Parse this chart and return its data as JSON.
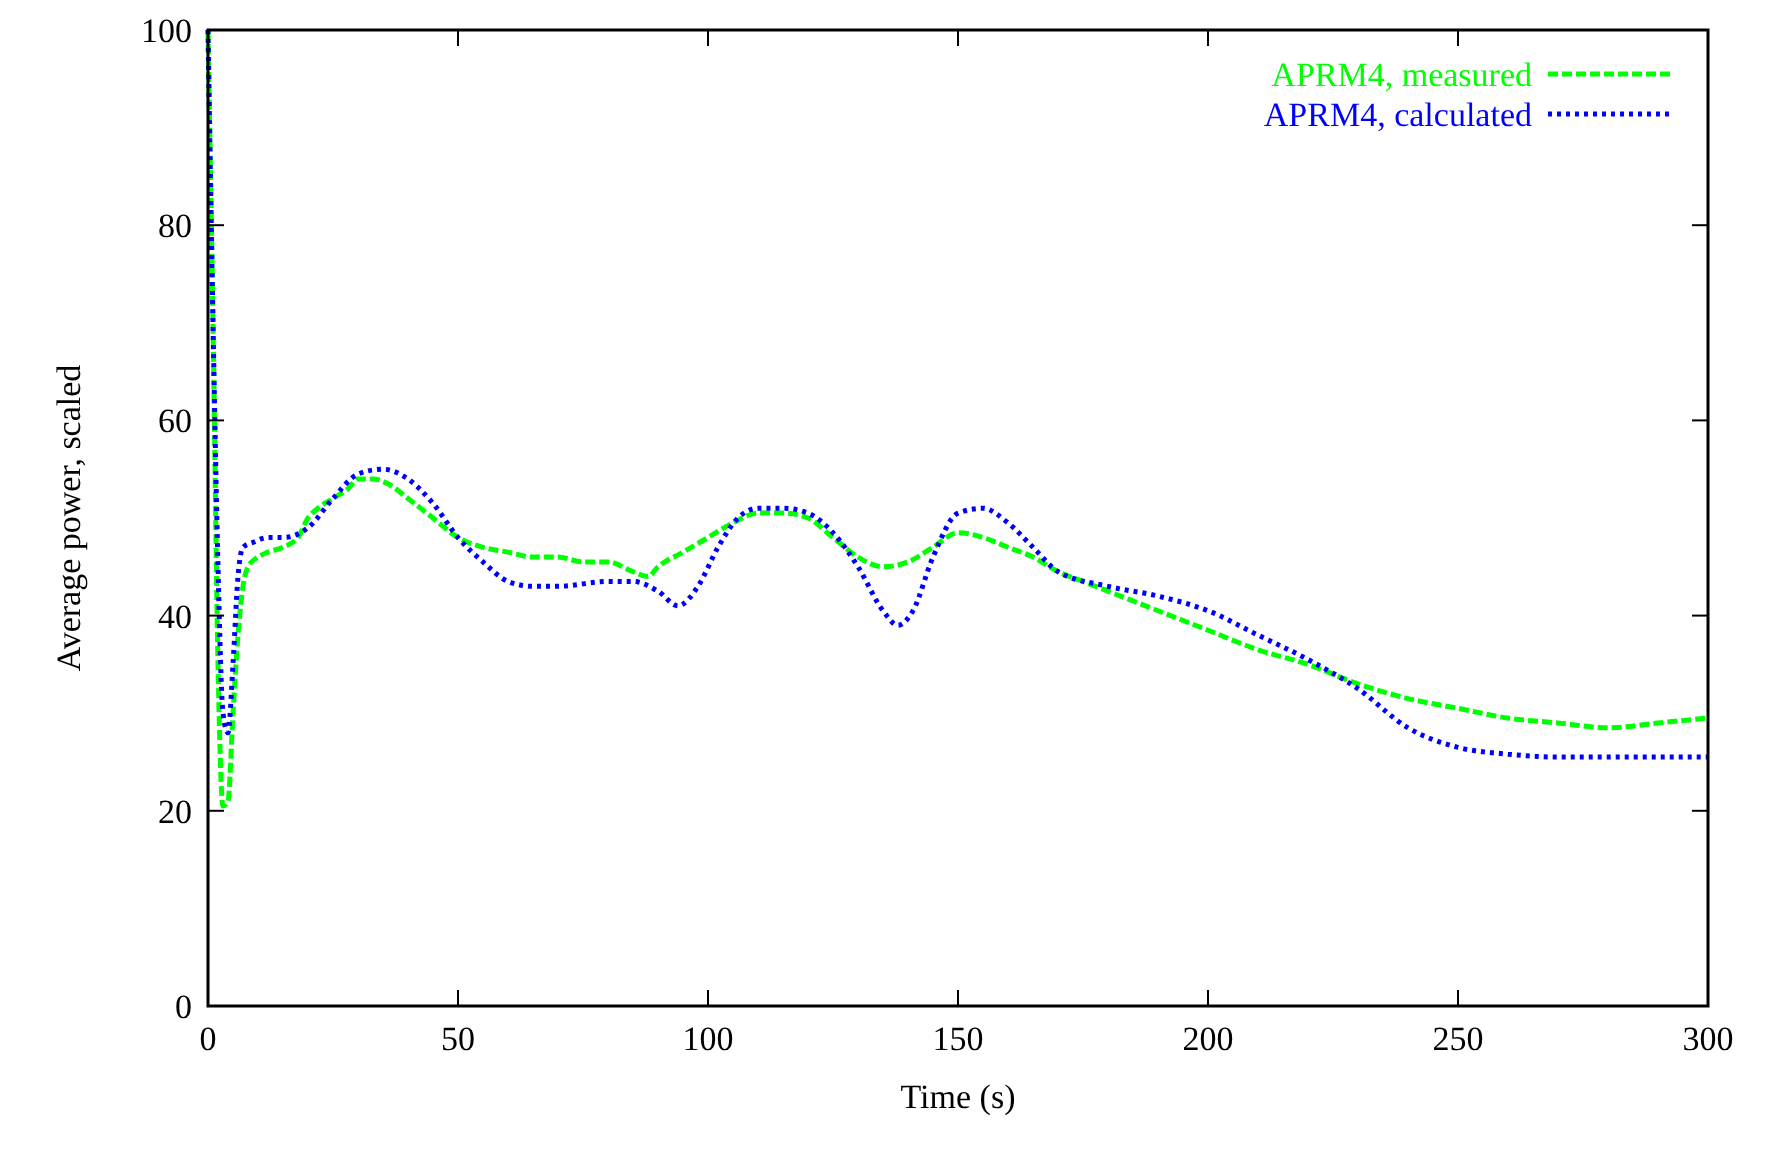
{
  "chart_data": {
    "type": "line",
    "xlabel": "Time (s)",
    "ylabel": "Average power, scaled",
    "xlim": [
      0,
      300
    ],
    "ylim": [
      0,
      100
    ],
    "xticks": [
      0,
      50,
      100,
      150,
      200,
      250,
      300
    ],
    "yticks": [
      0,
      20,
      40,
      60,
      80,
      100
    ],
    "grid": false,
    "legend": "top right",
    "series": [
      {
        "name": "APRM4, measured",
        "color": "#00ff00",
        "line_style": "dashed",
        "x": [
          0,
          1,
          2,
          3,
          4,
          5,
          6,
          7,
          8,
          10,
          12,
          15,
          18,
          20,
          22,
          25,
          28,
          30,
          33,
          36,
          40,
          45,
          50,
          55,
          60,
          65,
          70,
          75,
          80,
          85,
          88,
          90,
          95,
          100,
          105,
          110,
          115,
          120,
          125,
          130,
          135,
          140,
          145,
          150,
          155,
          160,
          165,
          170,
          175,
          180,
          190,
          200,
          210,
          220,
          230,
          240,
          250,
          260,
          270,
          280,
          290,
          300
        ],
        "values": [
          100,
          70,
          35,
          20.5,
          21,
          30,
          38,
          43,
          45,
          46,
          46.5,
          47,
          48,
          50,
          51,
          52,
          53,
          54,
          54,
          53.5,
          52,
          50,
          48,
          47,
          46.5,
          46,
          46,
          45.5,
          45.5,
          44.5,
          44,
          45,
          46.5,
          48,
          49.5,
          50.5,
          50.5,
          50,
          48,
          46,
          45,
          45.5,
          47,
          48.5,
          48,
          47,
          46,
          44.5,
          43.5,
          42.5,
          40.5,
          38.5,
          36.5,
          35,
          33,
          31.5,
          30.5,
          29.5,
          29,
          28.5,
          29,
          29.5
        ]
      },
      {
        "name": "APRM4, calculated",
        "color": "#0000ff",
        "line_style": "dotted",
        "x": [
          0,
          1,
          2,
          3,
          4,
          5,
          6,
          7,
          9,
          12,
          15,
          20,
          25,
          30,
          35,
          40,
          45,
          50,
          55,
          60,
          65,
          70,
          80,
          85,
          90,
          94,
          98,
          102,
          106,
          110,
          115,
          120,
          125,
          130,
          135,
          138,
          141,
          145,
          150,
          155,
          160,
          165,
          170,
          180,
          190,
          200,
          210,
          220,
          230,
          240,
          250,
          260,
          270,
          280,
          300
        ],
        "values": [
          100,
          70,
          45,
          30,
          28,
          35,
          44,
          47,
          47.5,
          48,
          48,
          49,
          52,
          54.5,
          55,
          54,
          51.5,
          48,
          45.5,
          43.5,
          43,
          43,
          43.5,
          43.5,
          42.5,
          41,
          43,
          47,
          50,
          51,
          51,
          50.5,
          48.5,
          45,
          40.5,
          39,
          40.5,
          46,
          50.5,
          51,
          49.5,
          47,
          44.5,
          43,
          42,
          40.5,
          38,
          35.5,
          32.5,
          28.5,
          26.5,
          25.8,
          25.5,
          25.5,
          25.5
        ]
      }
    ]
  }
}
